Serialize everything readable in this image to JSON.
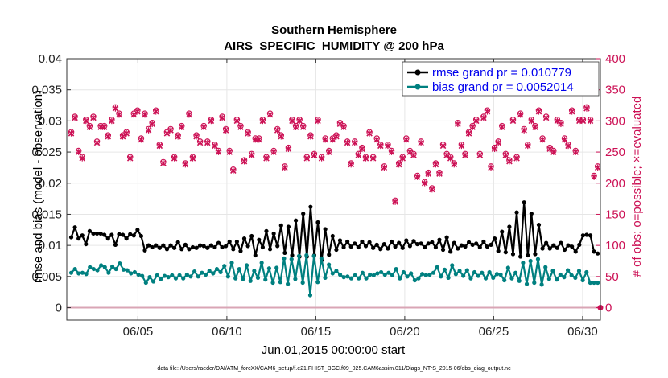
{
  "chart_data": {
    "type": "line",
    "title": [
      "Southern Hemisphere",
      "AIRS_SPECIFIC_HUMIDITY @ 200 hPa"
    ],
    "xlabel": "Jun.01,2015 00:00:00 start",
    "ylabel": "rmse and bias (model - observation)",
    "ylabel_right": "# of obs: o=possible; ×=evaluated",
    "x_ticks": [
      "06/05",
      "06/10",
      "06/15",
      "06/20",
      "06/25",
      "06/30"
    ],
    "x_tick_values": [
      5,
      10,
      15,
      20,
      25,
      30
    ],
    "xlim": [
      1,
      31
    ],
    "ylim": [
      -0.002,
      0.04
    ],
    "y_ticks": [
      "0",
      "0.005",
      "0.01",
      "0.015",
      "0.02",
      "0.025",
      "0.03",
      "0.035",
      "0.04"
    ],
    "y_tick_values": [
      0,
      0.005,
      0.01,
      0.015,
      0.02,
      0.025,
      0.03,
      0.035,
      0.04
    ],
    "ylim_right": [
      -20,
      400
    ],
    "y_ticks_right": [
      "0",
      "50",
      "100",
      "150",
      "200",
      "250",
      "300",
      "350",
      "400"
    ],
    "y_tick_values_right": [
      0,
      50,
      100,
      150,
      200,
      250,
      300,
      350,
      400
    ],
    "legend_position": "top-right",
    "colors": {
      "rmse": "#000000",
      "bias": "#008080",
      "obs": "#cc1155",
      "zero_line": "#d9a5b5"
    },
    "series": [
      {
        "name": "rmse grand pr = 0.010779",
        "axis": "left",
        "values": [
          0.0113,
          0.0129,
          0.0111,
          0.0116,
          0.0102,
          0.0123,
          0.0119,
          0.0119,
          0.0119,
          0.0117,
          0.0111,
          0.0117,
          0.0101,
          0.0118,
          0.0117,
          0.0111,
          0.0118,
          0.0116,
          0.0125,
          0.0115,
          0.0092,
          0.01,
          0.0097,
          0.01,
          0.0096,
          0.01,
          0.0094,
          0.01,
          0.0096,
          0.0105,
          0.0094,
          0.0101,
          0.0094,
          0.0097,
          0.0096,
          0.01,
          0.0099,
          0.0096,
          0.01,
          0.0097,
          0.0104,
          0.0097,
          0.0099,
          0.0106,
          0.0094,
          0.0106,
          0.0091,
          0.0111,
          0.0099,
          0.0115,
          0.0084,
          0.0109,
          0.0097,
          0.0123,
          0.0094,
          0.0119,
          0.0099,
          0.0132,
          0.0088,
          0.013,
          0.0084,
          0.014,
          0.0082,
          0.0151,
          0.0082,
          0.0162,
          0.0084,
          0.0137,
          0.0076,
          0.0126,
          0.0085,
          0.0115,
          0.0093,
          0.0108,
          0.0097,
          0.0106,
          0.0098,
          0.0103,
          0.0097,
          0.0106,
          0.0099,
          0.0105,
          0.0096,
          0.0101,
          0.0094,
          0.0102,
          0.0095,
          0.0106,
          0.0098,
          0.0104,
          0.0096,
          0.0108,
          0.0099,
          0.0107,
          0.0102,
          0.0103,
          0.0097,
          0.0103,
          0.0105,
          0.0097,
          0.0109,
          0.0093,
          0.0113,
          0.009,
          0.0104,
          0.0095,
          0.01,
          0.0098,
          0.0105,
          0.0101,
          0.0103,
          0.0097,
          0.0106,
          0.0098,
          0.0101,
          0.0111,
          0.0091,
          0.0122,
          0.0089,
          0.013,
          0.0086,
          0.0153,
          0.0082,
          0.0169,
          0.0084,
          0.0151,
          0.0086,
          0.0133,
          0.0095,
          0.0104,
          0.0095,
          0.01,
          0.0096,
          0.0104,
          0.0093,
          0.01,
          0.0098,
          0.009,
          0.0101,
          0.0116,
          0.0117,
          0.0116,
          0.009,
          0.0087
        ]
      },
      {
        "name": "bias grand pr = 0.0052014",
        "axis": "left",
        "values": [
          0.0056,
          0.0062,
          0.0055,
          0.0056,
          0.0054,
          0.0065,
          0.0062,
          0.006,
          0.0068,
          0.0065,
          0.0056,
          0.0066,
          0.0062,
          0.0071,
          0.0061,
          0.006,
          0.0055,
          0.0057,
          0.0053,
          0.0051,
          0.004,
          0.0049,
          0.0042,
          0.0052,
          0.0046,
          0.0051,
          0.0049,
          0.0052,
          0.0047,
          0.0052,
          0.0047,
          0.0053,
          0.005,
          0.0058,
          0.005,
          0.0056,
          0.0053,
          0.0059,
          0.0055,
          0.0062,
          0.0057,
          0.0067,
          0.005,
          0.0072,
          0.0047,
          0.0062,
          0.0046,
          0.0068,
          0.0043,
          0.0059,
          0.0048,
          0.0072,
          0.0045,
          0.0063,
          0.004,
          0.0064,
          0.0041,
          0.0079,
          0.0038,
          0.0078,
          0.0046,
          0.0083,
          0.004,
          0.0084,
          0.002,
          0.0083,
          0.0041,
          0.0079,
          0.0048,
          0.0069,
          0.0055,
          0.0059,
          0.0053,
          0.0049,
          0.005,
          0.0047,
          0.0052,
          0.0047,
          0.0056,
          0.0047,
          0.0053,
          0.0052,
          0.0055,
          0.0057,
          0.0053,
          0.0056,
          0.0052,
          0.0062,
          0.0047,
          0.0057,
          0.005,
          0.0055,
          0.0044,
          0.0047,
          0.0054,
          0.0052,
          0.0053,
          0.0056,
          0.0065,
          0.005,
          0.0061,
          0.0048,
          0.0068,
          0.0054,
          0.0059,
          0.0051,
          0.006,
          0.0047,
          0.0057,
          0.0051,
          0.0056,
          0.0047,
          0.0057,
          0.0048,
          0.0054,
          0.0053,
          0.0044,
          0.0064,
          0.0047,
          0.0056,
          0.0043,
          0.0072,
          0.0038,
          0.0075,
          0.004,
          0.0078,
          0.0037,
          0.0065,
          0.0046,
          0.0059,
          0.0045,
          0.0053,
          0.0049,
          0.006,
          0.0052,
          0.0048,
          0.0059,
          0.0044,
          0.0057,
          0.004,
          0.004,
          0.004
        ]
      },
      {
        "name": "obs evaluated",
        "axis": "right",
        "marker": "x",
        "values": [
          280,
          305,
          250,
          240,
          300,
          290,
          305,
          265,
          290,
          290,
          275,
          300,
          320,
          310,
          275,
          280,
          240,
          310,
          315,
          270,
          310,
          285,
          295,
          315,
          260,
          232,
          280,
          285,
          240,
          275,
          290,
          230,
          310,
          240,
          275,
          265,
          290,
          265,
          300,
          260,
          250,
          305,
          285,
          250,
          220,
          300,
          290,
          235,
          280,
          245,
          270,
          270,
          300,
          240,
          310,
          250,
          285,
          275,
          225,
          255,
          300,
          290,
          300,
          290,
          240,
          275,
          245,
          300,
          240,
          270,
          250,
          270,
          275,
          295,
          290,
          265,
          230,
          265,
          245,
          255,
          240,
          280,
          240,
          270,
          260,
          225,
          260,
          250,
          170,
          230,
          240,
          270,
          250,
          245,
          210,
          265,
          200,
          215,
          190,
          230,
          215,
          260,
          245,
          240,
          230,
          295,
          260,
          245,
          280,
          290,
          300,
          245,
          305,
          315,
          225,
          255,
          265,
          290,
          245,
          235,
          300,
          240,
          310,
          285,
          260,
          300,
          290,
          315,
          270,
          305,
          255,
          250,
          300,
          295,
          270,
          260,
          315,
          250,
          300,
          300,
          320,
          300,
          210,
          225
        ]
      },
      {
        "name": "obs possible",
        "axis": "right",
        "marker": "o",
        "values": [
          282,
          307,
          252,
          242,
          302,
          292,
          307,
          267,
          292,
          292,
          277,
          302,
          322,
          312,
          277,
          282,
          242,
          312,
          317,
          272,
          312,
          287,
          297,
          317,
          262,
          234,
          282,
          287,
          242,
          277,
          292,
          232,
          312,
          242,
          277,
          267,
          292,
          267,
          302,
          262,
          252,
          307,
          287,
          252,
          222,
          302,
          292,
          237,
          282,
          247,
          272,
          272,
          302,
          242,
          312,
          252,
          287,
          277,
          227,
          257,
          302,
          292,
          302,
          292,
          242,
          277,
          247,
          302,
          242,
          272,
          252,
          272,
          277,
          297,
          292,
          267,
          232,
          267,
          247,
          257,
          242,
          282,
          242,
          272,
          262,
          227,
          262,
          252,
          172,
          232,
          242,
          272,
          252,
          247,
          212,
          267,
          202,
          217,
          192,
          232,
          217,
          262,
          247,
          242,
          232,
          297,
          262,
          247,
          282,
          292,
          302,
          247,
          307,
          317,
          227,
          257,
          267,
          292,
          247,
          237,
          302,
          242,
          312,
          287,
          262,
          302,
          292,
          317,
          272,
          307,
          257,
          252,
          302,
          297,
          272,
          262,
          317,
          252,
          302,
          302,
          322,
          302,
          212,
          227
        ]
      }
    ],
    "legend": [
      {
        "label": "rmse grand pr = 0.010779",
        "color": "#000000"
      },
      {
        "label": "bias grand pr = 0.0052014",
        "color": "#008080"
      }
    ]
  },
  "footer": "data file: /Users/raeder/DAI/ATM_forcXX/CAM6_setup/f.e21.FHIST_BGC.f09_025.CAM6assim.011/Diags_NTrS_2015-06/obs_diag_output.nc"
}
